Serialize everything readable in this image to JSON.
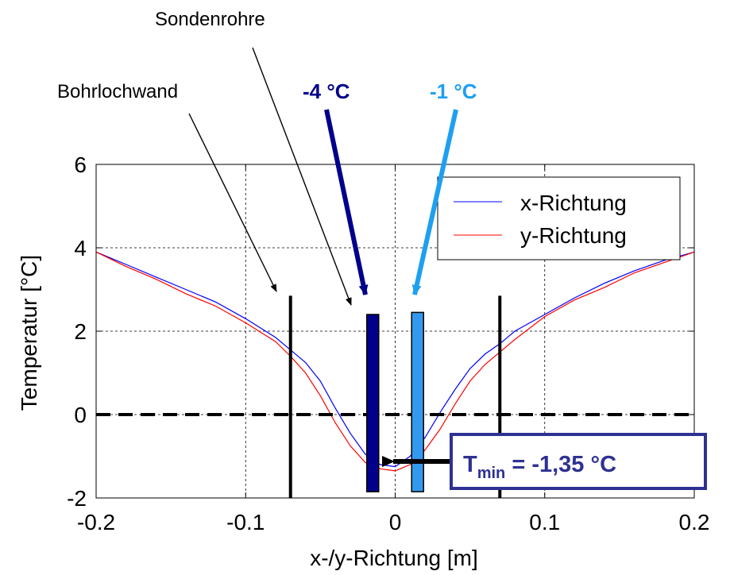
{
  "chart_data": {
    "type": "line",
    "xlabel": "x-/y-Richtung [m]",
    "ylabel": "Temperatur [°C]",
    "xlim": [
      -0.2,
      0.2
    ],
    "ylim": [
      -2,
      6
    ],
    "xticks": [
      -0.2,
      -0.1,
      0,
      0.1,
      0.2
    ],
    "xtick_labels": [
      "-0.2",
      "-0.1",
      "0",
      "0.1",
      "0.2"
    ],
    "yticks": [
      -2,
      0,
      2,
      4,
      6
    ],
    "ytick_labels": [
      "-2",
      "0",
      "2",
      "4",
      "6"
    ],
    "grid": true,
    "legend_position": "top-right",
    "series": [
      {
        "name": "x-Richtung",
        "color": "#0000ff",
        "x": [
          -0.2,
          -0.18,
          -0.16,
          -0.14,
          -0.12,
          -0.1,
          -0.08,
          -0.07,
          -0.06,
          -0.05,
          -0.04,
          -0.03,
          -0.02,
          -0.01,
          0,
          0.01,
          0.02,
          0.03,
          0.04,
          0.05,
          0.06,
          0.07,
          0.08,
          0.1,
          0.12,
          0.14,
          0.16,
          0.18,
          0.2
        ],
        "y": [
          3.9,
          3.6,
          3.3,
          3.0,
          2.7,
          2.3,
          1.85,
          1.55,
          1.25,
          0.8,
          0.15,
          -0.45,
          -0.95,
          -1.2,
          -1.25,
          -1.0,
          -0.55,
          0.05,
          0.6,
          1.1,
          1.45,
          1.7,
          2.0,
          2.4,
          2.8,
          3.15,
          3.45,
          3.7,
          3.9
        ]
      },
      {
        "name": "y-Richtung",
        "color": "#ff0000",
        "x": [
          -0.2,
          -0.18,
          -0.16,
          -0.14,
          -0.12,
          -0.1,
          -0.08,
          -0.07,
          -0.06,
          -0.05,
          -0.04,
          -0.03,
          -0.02,
          -0.01,
          0,
          0.01,
          0.02,
          0.03,
          0.04,
          0.05,
          0.06,
          0.07,
          0.08,
          0.1,
          0.12,
          0.14,
          0.16,
          0.18,
          0.2
        ],
        "y": [
          3.9,
          3.55,
          3.25,
          2.9,
          2.6,
          2.2,
          1.75,
          1.4,
          1.0,
          0.45,
          -0.2,
          -0.75,
          -1.15,
          -1.3,
          -1.35,
          -1.2,
          -0.85,
          -0.35,
          0.25,
          0.8,
          1.2,
          1.5,
          1.8,
          2.35,
          2.75,
          3.05,
          3.4,
          3.65,
          3.9
        ]
      }
    ],
    "zero_line_y": 0,
    "bohrlochwand_x": [
      -0.07,
      0.07
    ],
    "sondenrohre": [
      {
        "x": -0.015,
        "y_top": 2.4,
        "y_bottom": -1.85,
        "color": "#00008b",
        "temperature_label": "-4 °C"
      },
      {
        "x": 0.015,
        "y_top": 2.45,
        "y_bottom": -1.85,
        "color": "#3399ee",
        "temperature_label": "-1 °C"
      }
    ],
    "annotations": {
      "sondenrohre_label": "Sondenrohre",
      "bohrlochwand_label": "Bohrlochwand",
      "tmin_prefix": "T",
      "tmin_subscript": "min",
      "tmin_value": " = -1,35 °C"
    },
    "colors": {
      "dark_blue": "#00008b",
      "light_blue": "#1ea0f0",
      "tmin_text": "#2e3192",
      "tmin_border": "#2e3192"
    }
  }
}
